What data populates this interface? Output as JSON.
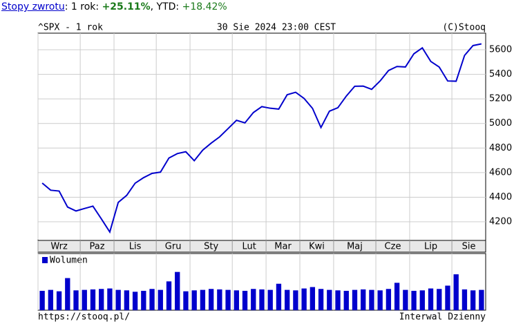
{
  "header": {
    "link": "Stopy zwrotu",
    "label_1y": "1 rok:",
    "return_1y": "+25.11%",
    "label_ytd": "YTD:",
    "return_ytd": "+18.42%"
  },
  "chart_data": {
    "type": "line",
    "title": "^SPX - 1 rok",
    "subtitle": "30 Sie 2024 23:00 CEST",
    "credit": "(C)Stooq",
    "source": "https://stooq.pl/",
    "interval": "Interwal Dzienny",
    "color": "#0000cc",
    "grid": true,
    "x": [
      0,
      1,
      2,
      3,
      4,
      5,
      6,
      7,
      8,
      9,
      10,
      11,
      12,
      13,
      14,
      15,
      16,
      17,
      18,
      19,
      20,
      21,
      22,
      23,
      24,
      25,
      26,
      27,
      28,
      29,
      30,
      31,
      32,
      33,
      34,
      35,
      36,
      37,
      38,
      39,
      40,
      41,
      42,
      43,
      44,
      45,
      46,
      47,
      48,
      49,
      50,
      51,
      52
    ],
    "xlim": [
      -0.5,
      52.5
    ],
    "xticks": [
      {
        "value": -0.5,
        "label": "Wrz"
      },
      {
        "value": 4.5,
        "label": "Paz"
      },
      {
        "value": 8.5,
        "label": "Lis"
      },
      {
        "value": 13.5,
        "label": "Gru"
      },
      {
        "value": 17.5,
        "label": "Sty"
      },
      {
        "value": 22.5,
        "label": "Lut"
      },
      {
        "value": 26.5,
        "label": "Mar"
      },
      {
        "value": 30.5,
        "label": "Kwi"
      },
      {
        "value": 34.5,
        "label": "Maj"
      },
      {
        "value": 39.5,
        "label": "Cze"
      },
      {
        "value": 43.5,
        "label": "Lip"
      },
      {
        "value": 48.5,
        "label": "Sie"
      }
    ],
    "ylim": [
      4054,
      5735
    ],
    "yticks": [
      4200,
      4400,
      4600,
      4800,
      5000,
      5200,
      5400,
      5600
    ],
    "series": [
      {
        "name": "^SPX",
        "color": "#0000cc",
        "values": [
          4515,
          4457,
          4450,
          4320,
          4288,
          4308,
          4327,
          4224,
          4117,
          4358,
          4415,
          4514,
          4559,
          4594,
          4604,
          4719,
          4755,
          4770,
          4697,
          4783,
          4840,
          4891,
          4958,
          5026,
          5005,
          5089,
          5137,
          5124,
          5117,
          5234,
          5254,
          5204,
          5123,
          4967,
          5100,
          5128,
          5223,
          5303,
          5304,
          5278,
          5346,
          5431,
          5464,
          5460,
          5567,
          5615,
          5505,
          5459,
          5346,
          5344,
          5554,
          5634,
          5648
        ]
      }
    ],
    "volume": {
      "name": "Wolumen",
      "color": "#0000cc",
      "ylim": [
        0,
        12
      ],
      "values": [
        4.1,
        4.3,
        4.0,
        6.8,
        4.2,
        4.3,
        4.4,
        4.5,
        4.6,
        4.3,
        4.2,
        3.9,
        4.1,
        4.5,
        4.3,
        6.1,
        8.1,
        4.0,
        4.2,
        4.3,
        4.5,
        4.4,
        4.3,
        4.2,
        4.1,
        4.5,
        4.4,
        4.3,
        5.6,
        4.3,
        4.2,
        4.6,
        4.9,
        4.5,
        4.3,
        4.2,
        4.1,
        4.3,
        4.4,
        4.3,
        4.2,
        4.5,
        5.8,
        4.3,
        4.1,
        4.2,
        4.6,
        4.5,
        5.2,
        7.6,
        4.4,
        4.2,
        4.3
      ]
    }
  }
}
